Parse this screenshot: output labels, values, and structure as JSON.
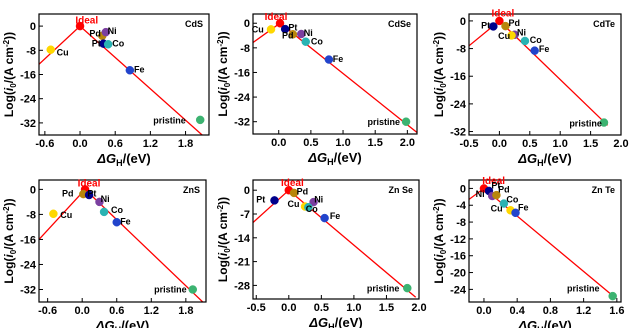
{
  "colors": {
    "line": "#ff0000",
    "ideal_label": "#ff0000",
    "text": "#000000",
    "axis": "#000000"
  },
  "chart_data": [
    {
      "type": "scatter",
      "title": "CdS",
      "xlabel": "ΔG_H/(eV)",
      "ylabel": "Log(i_0/(A cm^-2))",
      "xlim": [
        -0.7,
        2.2
      ],
      "ylim": [
        -36,
        4
      ],
      "xticks": [
        -0.6,
        0.0,
        0.6,
        1.2,
        1.8
      ],
      "xtick_labels": [
        "-0.6",
        "0.0",
        "0.6",
        "1.2",
        "1.8"
      ],
      "yticks": [
        0,
        -8,
        -16,
        -24,
        -32
      ],
      "ytick_labels": [
        "0",
        "-8",
        "-16",
        "-24",
        "-32"
      ],
      "volcano_line": [
        [
          -0.75,
          -13.5
        ],
        [
          0.0,
          0.0
        ],
        [
          2.2,
          -38.0
        ]
      ],
      "points": [
        {
          "name": "Ideal",
          "x": 0.0,
          "y": 0.0,
          "color": "#ff0000"
        },
        {
          "name": "Pd",
          "x": 0.38,
          "y": -3.2,
          "color": "#b8860b"
        },
        {
          "name": "Ni",
          "x": 0.44,
          "y": -2.0,
          "color": "#7b3fa0"
        },
        {
          "name": "Pt",
          "x": 0.4,
          "y": -5.8,
          "color": "#00008b"
        },
        {
          "name": "Co",
          "x": 0.48,
          "y": -6.0,
          "color": "#2ab3b3"
        },
        {
          "name": "Cu",
          "x": -0.5,
          "y": -7.8,
          "color": "#ffd700"
        },
        {
          "name": "Fe",
          "x": 0.85,
          "y": -14.6,
          "color": "#2244cc"
        },
        {
          "name": "pristine",
          "x": 2.05,
          "y": -31.0,
          "color": "#3cb371"
        }
      ],
      "labels": [
        {
          "text": "Ideal",
          "x": -0.08,
          "y": 0.8,
          "color": "#ff0000",
          "bold": true
        },
        {
          "text": "Pd",
          "x": 0.16,
          "y": -3.5,
          "color": "#000000"
        },
        {
          "text": "Ni",
          "x": 0.47,
          "y": -2.6,
          "color": "#000000"
        },
        {
          "text": "Pt",
          "x": 0.2,
          "y": -6.7,
          "color": "#000000"
        },
        {
          "text": "Co",
          "x": 0.55,
          "y": -6.8,
          "color": "#000000"
        },
        {
          "text": "Cu",
          "x": -0.4,
          "y": -9.8,
          "color": "#000000"
        },
        {
          "text": "Fe",
          "x": 0.92,
          "y": -15.4,
          "color": "#000000"
        },
        {
          "text": "pristine",
          "x": 1.25,
          "y": -32.2,
          "color": "#000000"
        }
      ]
    },
    {
      "type": "scatter",
      "title": "CdSe",
      "xlabel": "ΔG_H/(eV)",
      "ylabel": "Log(i_0/(A cm^-2))",
      "xlim": [
        -0.4,
        2.15
      ],
      "ylim": [
        -36,
        3
      ],
      "xticks": [
        0.0,
        0.5,
        1.0,
        1.5,
        2.0
      ],
      "xtick_labels": [
        "0.0",
        "0.5",
        "1.0",
        "1.5",
        "2.0"
      ],
      "yticks": [
        0,
        -8,
        -16,
        -24,
        -32
      ],
      "ytick_labels": [
        "0",
        "-8",
        "-16",
        "-24",
        "-32"
      ],
      "volcano_line": [
        [
          -0.45,
          -7.0
        ],
        [
          0.02,
          0.0
        ],
        [
          2.15,
          -35.5
        ]
      ],
      "points": [
        {
          "name": "Ideal",
          "x": 0.02,
          "y": 0.0,
          "color": "#ff0000"
        },
        {
          "name": "Cu",
          "x": -0.12,
          "y": -2.0,
          "color": "#ffd700"
        },
        {
          "name": "Pt",
          "x": 0.1,
          "y": -1.9,
          "color": "#00008b"
        },
        {
          "name": "Pd",
          "x": 0.22,
          "y": -3.6,
          "color": "#b8860b"
        },
        {
          "name": "Ni",
          "x": 0.35,
          "y": -3.5,
          "color": "#7b3fa0"
        },
        {
          "name": "Co",
          "x": 0.42,
          "y": -6.0,
          "color": "#2ab3b3"
        },
        {
          "name": "Fe",
          "x": 0.78,
          "y": -11.8,
          "color": "#2244cc"
        },
        {
          "name": "pristine",
          "x": 1.98,
          "y": -32.0,
          "color": "#3cb371"
        }
      ],
      "labels": [
        {
          "text": "Ideal",
          "x": -0.22,
          "y": 1.0,
          "color": "#ff0000",
          "bold": true
        },
        {
          "text": "Cu",
          "x": -0.42,
          "y": -3.0,
          "color": "#000000"
        },
        {
          "text": "Pt",
          "x": 0.15,
          "y": -2.3,
          "color": "#000000"
        },
        {
          "text": "Pd",
          "x": 0.05,
          "y": -5.0,
          "color": "#000000"
        },
        {
          "text": "Ni",
          "x": 0.39,
          "y": -4.2,
          "color": "#000000"
        },
        {
          "text": "Co",
          "x": 0.5,
          "y": -6.9,
          "color": "#000000"
        },
        {
          "text": "Fe",
          "x": 0.84,
          "y": -12.6,
          "color": "#000000"
        },
        {
          "text": "pristine",
          "x": 1.38,
          "y": -33.0,
          "color": "#000000"
        }
      ]
    },
    {
      "type": "scatter",
      "title": "CdTe",
      "xlabel": "ΔG_H/(eV)",
      "ylabel": "Log(i_0/(A cm^-2))",
      "xlim": [
        -0.5,
        2.0
      ],
      "ylim": [
        -33,
        2
      ],
      "xticks": [
        -0.5,
        0.0,
        0.5,
        1.0,
        1.5,
        2.0
      ],
      "xtick_labels": [
        "-0.5",
        "0.0",
        "0.5",
        "1.0",
        "1.5",
        "2.0"
      ],
      "yticks": [
        0,
        -8,
        -16,
        -24,
        -32
      ],
      "ytick_labels": [
        "0",
        "-8",
        "-16",
        "-24",
        "-32"
      ],
      "volcano_line": [
        [
          -0.5,
          -7.2
        ],
        [
          0.0,
          0.0
        ],
        [
          1.78,
          -30.2
        ]
      ],
      "points": [
        {
          "name": "Ideal",
          "x": 0.0,
          "y": 0.0,
          "color": "#ff0000"
        },
        {
          "name": "Pt",
          "x": -0.1,
          "y": -1.6,
          "color": "#00008b"
        },
        {
          "name": "Pd",
          "x": 0.1,
          "y": -1.5,
          "color": "#b8860b"
        },
        {
          "name": "Ni",
          "x": 0.25,
          "y": -4.0,
          "color": "#7b3fa0"
        },
        {
          "name": "Cu",
          "x": 0.2,
          "y": -4.2,
          "color": "#ffd700"
        },
        {
          "name": "Co",
          "x": 0.42,
          "y": -5.8,
          "color": "#2ab3b3"
        },
        {
          "name": "Fe",
          "x": 0.58,
          "y": -8.6,
          "color": "#2244cc"
        },
        {
          "name": "pristine",
          "x": 1.72,
          "y": -29.4,
          "color": "#3cb371"
        }
      ],
      "labels": [
        {
          "text": "Ideal",
          "x": -0.13,
          "y": 1.3,
          "color": "#ff0000",
          "bold": true
        },
        {
          "text": "Pt",
          "x": -0.3,
          "y": -2.2,
          "color": "#000000"
        },
        {
          "text": "Pd",
          "x": 0.15,
          "y": -1.4,
          "color": "#000000"
        },
        {
          "text": "Ni",
          "x": 0.29,
          "y": -4.2,
          "color": "#000000"
        },
        {
          "text": "Cu",
          "x": -0.02,
          "y": -5.3,
          "color": "#000000"
        },
        {
          "text": "Co",
          "x": 0.5,
          "y": -6.4,
          "color": "#000000"
        },
        {
          "text": "Fe",
          "x": 0.65,
          "y": -9.0,
          "color": "#000000"
        },
        {
          "text": "pristine",
          "x": 1.15,
          "y": -30.6,
          "color": "#000000"
        }
      ]
    },
    {
      "type": "scatter",
      "title": "ZnS",
      "xlabel": "ΔG_H/(eV)",
      "ylabel": "Log(i_0/(A cm^-2))",
      "xlim": [
        -0.75,
        2.15
      ],
      "ylim": [
        -36,
        3
      ],
      "xticks": [
        -0.6,
        0.0,
        0.6,
        1.2,
        1.8
      ],
      "xtick_labels": [
        "-0.6",
        "0.0",
        "0.6",
        "1.2",
        "1.8"
      ],
      "yticks": [
        0,
        -8,
        -16,
        -24,
        -32
      ],
      "ytick_labels": [
        "0",
        "-8",
        "-16",
        "-24",
        "-32"
      ],
      "volcano_line": [
        [
          -0.75,
          -16.0
        ],
        [
          0.05,
          0.0
        ],
        [
          2.15,
          -37.0
        ]
      ],
      "points": [
        {
          "name": "Ideal",
          "x": 0.05,
          "y": 0.0,
          "color": "#ff0000"
        },
        {
          "name": "Pd",
          "x": 0.02,
          "y": -1.5,
          "color": "#b8860b"
        },
        {
          "name": "Pt",
          "x": 0.12,
          "y": -1.8,
          "color": "#00008b"
        },
        {
          "name": "Ni",
          "x": 0.3,
          "y": -4.0,
          "color": "#7b3fa0"
        },
        {
          "name": "Co",
          "x": 0.38,
          "y": -7.2,
          "color": "#2ab3b3"
        },
        {
          "name": "Cu",
          "x": -0.5,
          "y": -7.8,
          "color": "#ffd700"
        },
        {
          "name": "Fe",
          "x": 0.6,
          "y": -10.5,
          "color": "#2244cc"
        },
        {
          "name": "pristine",
          "x": 1.92,
          "y": -32.0,
          "color": "#3cb371"
        }
      ],
      "labels": [
        {
          "text": "Ideal",
          "x": -0.08,
          "y": 1.0,
          "color": "#ff0000",
          "bold": true
        },
        {
          "text": "Pd",
          "x": -0.35,
          "y": -2.2,
          "color": "#000000"
        },
        {
          "text": "Pt",
          "x": 0.09,
          "y": -2.2,
          "color": "#000000"
        },
        {
          "text": "Ni",
          "x": 0.32,
          "y": -4.0,
          "color": "#000000"
        },
        {
          "text": "Co",
          "x": 0.5,
          "y": -7.6,
          "color": "#000000"
        },
        {
          "text": "Cu",
          "x": -0.38,
          "y": -9.2,
          "color": "#000000"
        },
        {
          "text": "Fe",
          "x": 0.66,
          "y": -11.2,
          "color": "#000000"
        },
        {
          "text": "pristine",
          "x": 1.25,
          "y": -33.0,
          "color": "#000000"
        }
      ]
    },
    {
      "type": "scatter",
      "title": "Zn Se",
      "xlabel": "ΔG_H/(eV)",
      "ylabel": "Log(i_0/(A cm^-2))",
      "xlim": [
        -0.55,
        2.0
      ],
      "ylim": [
        -32,
        3
      ],
      "xticks": [
        -0.5,
        0.0,
        0.5,
        1.0,
        1.5,
        2.0
      ],
      "xtick_labels": [
        "-0.5",
        "0.0",
        "0.5",
        "1.0",
        "1.5",
        "2.0"
      ],
      "yticks": [
        0,
        -7,
        -14,
        -21,
        -28
      ],
      "ytick_labels": [
        "0",
        "-7",
        "-14",
        "-21",
        "-28"
      ],
      "volcano_line": [
        [
          -0.55,
          -9.5
        ],
        [
          0.0,
          0.0
        ],
        [
          1.95,
          -31.5
        ]
      ],
      "points": [
        {
          "name": "Ideal",
          "x": 0.0,
          "y": 0.0,
          "color": "#ff0000"
        },
        {
          "name": "Pd",
          "x": 0.08,
          "y": -0.8,
          "color": "#b8860b"
        },
        {
          "name": "Pt",
          "x": -0.22,
          "y": -3.0,
          "color": "#00008b"
        },
        {
          "name": "Ni",
          "x": 0.38,
          "y": -3.5,
          "color": "#7b3fa0"
        },
        {
          "name": "Cu",
          "x": 0.25,
          "y": -4.8,
          "color": "#ffd700"
        },
        {
          "name": "Co",
          "x": 0.3,
          "y": -5.0,
          "color": "#2ab3b3"
        },
        {
          "name": "Fe",
          "x": 0.55,
          "y": -8.2,
          "color": "#2244cc"
        },
        {
          "name": "pristine",
          "x": 1.82,
          "y": -28.8,
          "color": "#3cb371"
        }
      ],
      "labels": [
        {
          "text": "Ideal",
          "x": -0.12,
          "y": 1.2,
          "color": "#ff0000",
          "bold": true
        },
        {
          "text": "Pd",
          "x": 0.12,
          "y": -1.3,
          "color": "#000000"
        },
        {
          "text": "Pt",
          "x": -0.5,
          "y": -3.6,
          "color": "#000000"
        },
        {
          "text": "Ni",
          "x": 0.39,
          "y": -3.6,
          "color": "#000000"
        },
        {
          "text": "Cu",
          "x": -0.02,
          "y": -5.0,
          "color": "#000000"
        },
        {
          "text": "Co",
          "x": 0.26,
          "y": -6.4,
          "color": "#000000"
        },
        {
          "text": "Fe",
          "x": 0.63,
          "y": -8.4,
          "color": "#000000"
        },
        {
          "text": "pristine",
          "x": 1.2,
          "y": -29.8,
          "color": "#000000"
        }
      ]
    },
    {
      "type": "scatter",
      "title": "Zn Te",
      "xlabel": "ΔG_H/(eV)",
      "ylabel": "Log(i_0/(A cm^-2))",
      "xlim": [
        -0.18,
        1.65
      ],
      "ylim": [
        -27,
        2
      ],
      "xticks": [
        0.0,
        0.4,
        0.8,
        1.2,
        1.6
      ],
      "xtick_labels": [
        "0.0",
        "0.4",
        "0.8",
        "1.2",
        "1.6"
      ],
      "yticks": [
        0,
        -4,
        -8,
        -12,
        -16,
        -20,
        -24
      ],
      "ytick_labels": [
        "0",
        "-4",
        "-8",
        "-12",
        "-16",
        "-20",
        "-24"
      ],
      "volcano_line": [
        [
          -0.18,
          -2.6
        ],
        [
          0.0,
          0.0
        ],
        [
          1.58,
          -26.0
        ]
      ],
      "points": [
        {
          "name": "Ideal",
          "x": 0.0,
          "y": 0.0,
          "color": "#ff0000"
        },
        {
          "name": "Pt",
          "x": 0.06,
          "y": -0.6,
          "color": "#00008b"
        },
        {
          "name": "Ni",
          "x": 0.1,
          "y": -1.8,
          "color": "#7b3fa0"
        },
        {
          "name": "Pd",
          "x": 0.15,
          "y": -1.6,
          "color": "#b8860b"
        },
        {
          "name": "Co",
          "x": 0.24,
          "y": -3.6,
          "color": "#2ab3b3"
        },
        {
          "name": "Cu",
          "x": 0.32,
          "y": -5.2,
          "color": "#ffd700"
        },
        {
          "name": "Fe",
          "x": 0.38,
          "y": -5.8,
          "color": "#2244cc"
        },
        {
          "name": "pristine",
          "x": 1.55,
          "y": -25.6,
          "color": "#3cb371"
        }
      ],
      "labels": [
        {
          "text": "Ideal",
          "x": -0.02,
          "y": 1.0,
          "color": "#ff0000",
          "bold": true
        },
        {
          "text": "Pt",
          "x": 0.09,
          "y": 0.0,
          "color": "#000000"
        },
        {
          "text": "Ni",
          "x": -0.1,
          "y": -2.0,
          "color": "#000000"
        },
        {
          "text": "Pd",
          "x": 0.17,
          "y": -1.0,
          "color": "#000000"
        },
        {
          "text": "Co",
          "x": 0.27,
          "y": -3.3,
          "color": "#000000"
        },
        {
          "text": "Cu",
          "x": 0.08,
          "y": -5.5,
          "color": "#000000"
        },
        {
          "text": "Fe",
          "x": 0.41,
          "y": -5.3,
          "color": "#000000"
        },
        {
          "text": "pristine",
          "x": 1.0,
          "y": -24.5,
          "color": "#000000"
        }
      ]
    }
  ]
}
